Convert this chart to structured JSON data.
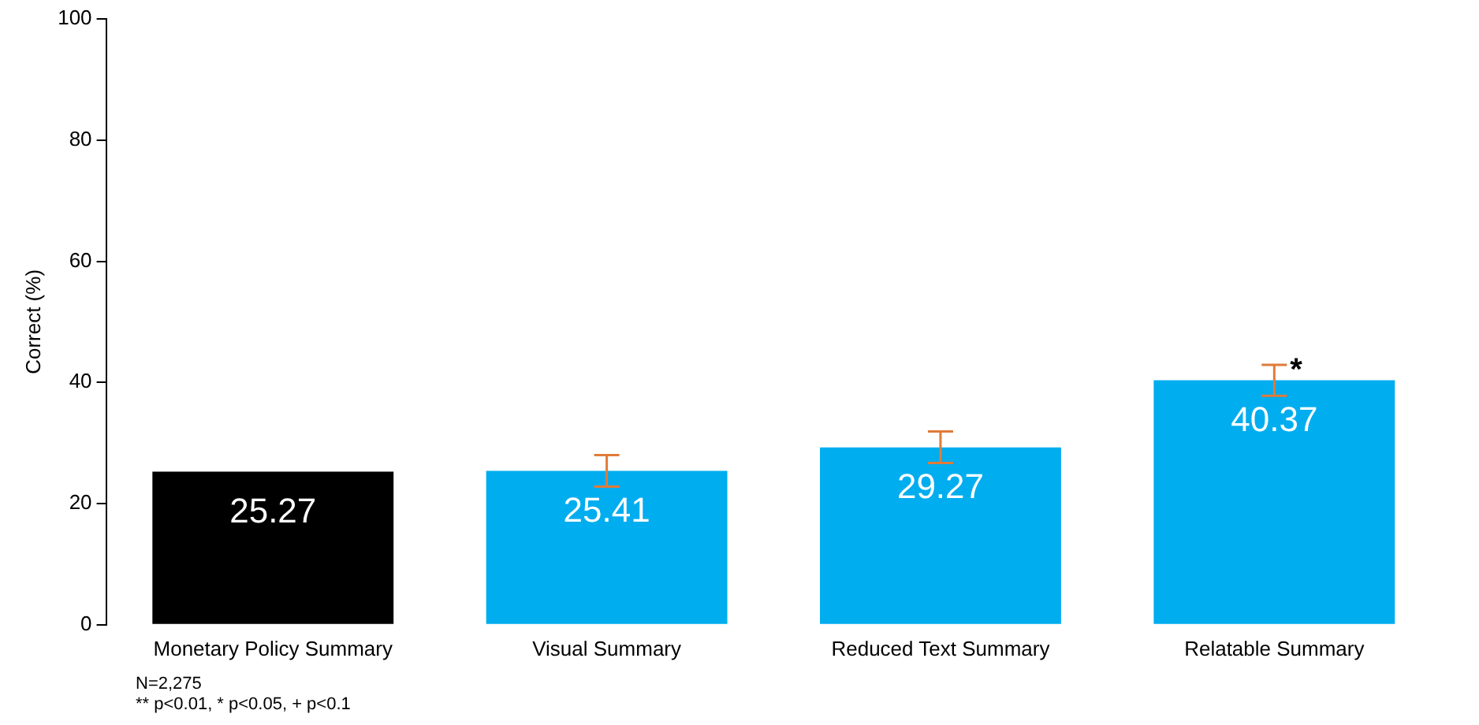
{
  "chart_data": {
    "type": "bar",
    "ylabel": "Correct (%)",
    "categories": [
      "Monetary Policy Summary",
      "Visual Summary",
      "Reduced Text Summary",
      "Relatable Summary"
    ],
    "values": [
      25.27,
      25.41,
      29.27,
      40.37
    ],
    "colors": [
      "#000000",
      "#00adef",
      "#00adef",
      "#00adef"
    ],
    "errors": [
      null,
      [
        22.8,
        28.0
      ],
      [
        26.7,
        31.9
      ],
      [
        37.8,
        42.9
      ]
    ],
    "ylim": [
      0,
      100
    ],
    "yticks": [
      0,
      20,
      40,
      60,
      80,
      100
    ],
    "grid": false,
    "legend": false,
    "data_labels": true,
    "annotations": [
      {
        "text": "*",
        "x": "Relatable Summary",
        "y": 42.9
      },
      "N=2,275",
      "** p<0.01, * p<0.05, + p<0.1"
    ]
  }
}
